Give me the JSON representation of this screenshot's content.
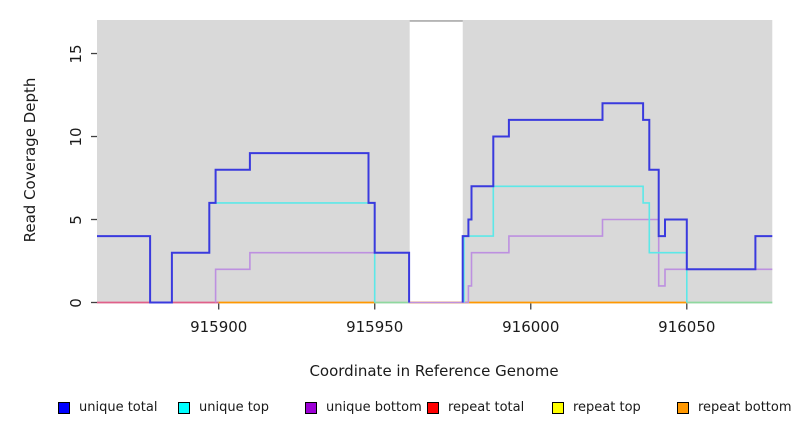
{
  "figure": {
    "x_axis_title": "Coordinate in Reference Genome",
    "y_axis_title": "Read Coverage Depth"
  },
  "legend": {
    "items": [
      {
        "label": "unique total",
        "color": "#0000ff"
      },
      {
        "label": "unique top",
        "color": "#00ffff"
      },
      {
        "label": "unique bottom",
        "color": "#9d00d6"
      },
      {
        "label": "repeat total",
        "color": "#ff0000"
      },
      {
        "label": "repeat top",
        "color": "#ffff00"
      },
      {
        "label": "repeat bottom",
        "color": "#ff9800"
      }
    ]
  },
  "chart_data": {
    "type": "line",
    "subtype": "step-coverage",
    "title": "",
    "xlabel": "Coordinate in Reference Genome",
    "ylabel": "Read Coverage Depth",
    "xlim": [
      915861,
      916077.4
    ],
    "ylim": [
      0,
      17.02
    ],
    "grid": false,
    "panel_bg": "#d9d9d9",
    "x_ticks": [
      {
        "value": 915900,
        "label": "915900"
      },
      {
        "value": 915950,
        "label": "915950"
      },
      {
        "value": 916000,
        "label": "916000"
      },
      {
        "value": 916050,
        "label": "916050"
      }
    ],
    "y_ticks": [
      {
        "value": 0,
        "label": "0"
      },
      {
        "value": 5,
        "label": "5"
      },
      {
        "value": 10,
        "label": "10"
      },
      {
        "value": 15,
        "label": "15"
      }
    ],
    "gap_band": {
      "from": 915961.2,
      "to": 915978.2,
      "fill": "#ffffff",
      "cap_color": "#a9a9a9"
    },
    "baseline_segments": [
      {
        "from": 915861,
        "to": 915900,
        "color": "#e0608a",
        "series": "repeat total + unique bottom at 0"
      },
      {
        "from": 915900,
        "to": 915950,
        "color": "#ff9800",
        "series": "repeat bottom at 0"
      },
      {
        "from": 915950,
        "to": 915961,
        "color": "#8fd89f",
        "series": "unique top + repeat top at 0"
      },
      {
        "from": 915961,
        "to": 916050,
        "color": "#ff9800",
        "series": "repeat bottom at 0"
      },
      {
        "from": 916050,
        "to": 916077.4,
        "color": "#8fd89f",
        "series": "unique top + repeat top at 0"
      }
    ],
    "series": [
      {
        "name": "unique bottom",
        "color": "#bd90e0",
        "width": 1.6,
        "paths": [
          [
            [
              915899,
              0
            ],
            [
              915899,
              2
            ],
            [
              915910,
              2
            ],
            [
              915910,
              3
            ],
            [
              915961,
              3
            ],
            [
              915961,
              0
            ],
            [
              915980,
              0
            ],
            [
              915980,
              1
            ],
            [
              915981,
              1
            ],
            [
              915981,
              3
            ],
            [
              915993,
              3
            ],
            [
              915993,
              4
            ],
            [
              916023,
              4
            ],
            [
              916023,
              5
            ],
            [
              916041,
              5
            ],
            [
              916041,
              1
            ],
            [
              916043,
              1
            ],
            [
              916043,
              2
            ],
            [
              916077.4,
              2
            ]
          ]
        ]
      },
      {
        "name": "unique top",
        "color": "#5ce8e8",
        "width": 1.6,
        "paths": [
          [
            [
              915897,
              3
            ],
            [
              915897,
              6
            ],
            [
              915950,
              6
            ],
            [
              915950,
              0
            ]
          ],
          [
            [
              915978.6,
              0
            ],
            [
              915978.6,
              4
            ],
            [
              915988,
              4
            ],
            [
              915988,
              7
            ],
            [
              916036,
              7
            ],
            [
              916036,
              6
            ],
            [
              916038,
              6
            ],
            [
              916038,
              3
            ],
            [
              916050,
              3
            ],
            [
              916050,
              0
            ]
          ]
        ]
      },
      {
        "name": "unique total",
        "color": "#3a3ade",
        "width": 2,
        "paths": [
          [
            [
              915861,
              4
            ],
            [
              915878,
              4
            ],
            [
              915878,
              0
            ],
            [
              915885,
              0
            ],
            [
              915885,
              3
            ],
            [
              915897,
              3
            ],
            [
              915897,
              6
            ],
            [
              915899,
              6
            ],
            [
              915899,
              8
            ],
            [
              915910,
              8
            ],
            [
              915910,
              9
            ],
            [
              915948,
              9
            ],
            [
              915948,
              6
            ],
            [
              915950,
              6
            ],
            [
              915950,
              3
            ],
            [
              915961,
              3
            ],
            [
              915961,
              0
            ]
          ],
          [
            [
              915978.2,
              0
            ],
            [
              915978.2,
              4
            ],
            [
              915980,
              4
            ],
            [
              915980,
              5
            ],
            [
              915981,
              5
            ],
            [
              915981,
              7
            ],
            [
              915988,
              7
            ],
            [
              915988,
              10
            ],
            [
              915993,
              10
            ],
            [
              915993,
              11
            ],
            [
              916023,
              11
            ],
            [
              916023,
              12
            ],
            [
              916036,
              12
            ],
            [
              916036,
              11
            ],
            [
              916038,
              11
            ],
            [
              916038,
              8
            ],
            [
              916041,
              8
            ],
            [
              916041,
              4
            ],
            [
              916043,
              4
            ],
            [
              916043,
              5
            ],
            [
              916050,
              5
            ],
            [
              916050,
              2
            ],
            [
              916072,
              2
            ],
            [
              916072,
              4
            ],
            [
              916077.4,
              4
            ]
          ]
        ]
      },
      {
        "name": "repeat total",
        "color": "#ff0000",
        "width": 1.6,
        "paths": [],
        "note_value": 0
      },
      {
        "name": "repeat top",
        "color": "#ffff00",
        "width": 1.6,
        "paths": [],
        "note_value": 0
      },
      {
        "name": "repeat bottom",
        "color": "#ff9800",
        "width": 1.6,
        "paths": [],
        "note_value": 0
      }
    ]
  }
}
